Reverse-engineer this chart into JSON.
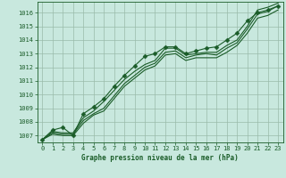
{
  "title": "Graphe pression niveau de la mer (hPa)",
  "bg_color": "#c8e8de",
  "grid_color": "#99bbaa",
  "line_color": "#1a5c28",
  "xlim": [
    -0.5,
    23.5
  ],
  "ylim": [
    1006.5,
    1016.8
  ],
  "yticks": [
    1007,
    1008,
    1009,
    1010,
    1011,
    1012,
    1013,
    1014,
    1015,
    1016
  ],
  "xticks": [
    0,
    1,
    2,
    3,
    4,
    5,
    6,
    7,
    8,
    9,
    10,
    11,
    12,
    13,
    14,
    15,
    16,
    17,
    18,
    19,
    20,
    21,
    22,
    23
  ],
  "series": [
    [
      1006.7,
      1007.3,
      1007.2,
      1007.2,
      1008.3,
      1008.8,
      1009.5,
      1010.3,
      1011.1,
      1011.7,
      1012.2,
      1012.5,
      1013.4,
      1013.4,
      1012.9,
      1013.0,
      1013.1,
      1013.1,
      1013.6,
      1014.0,
      1015.0,
      1016.2,
      1016.4,
      1016.7
    ],
    [
      1006.7,
      1007.2,
      1007.1,
      1007.1,
      1008.1,
      1008.6,
      1009.0,
      1009.9,
      1010.8,
      1011.4,
      1012.0,
      1012.3,
      1013.1,
      1013.2,
      1012.7,
      1012.9,
      1013.0,
      1012.9,
      1013.4,
      1013.8,
      1014.8,
      1015.9,
      1016.1,
      1016.5
    ],
    [
      1006.7,
      1007.1,
      1007.0,
      1007.0,
      1007.9,
      1008.5,
      1008.8,
      1009.7,
      1010.6,
      1011.2,
      1011.8,
      1012.1,
      1012.9,
      1013.0,
      1012.5,
      1012.7,
      1012.7,
      1012.7,
      1013.1,
      1013.6,
      1014.5,
      1015.6,
      1015.8,
      1016.2
    ],
    [
      1006.7,
      1007.4,
      1007.6,
      1007.0,
      1008.6,
      1009.1,
      1009.7,
      1010.6,
      1011.4,
      1012.1,
      1012.8,
      1013.0,
      1013.5,
      1013.5,
      1013.0,
      1013.2,
      1013.4,
      1013.5,
      1014.0,
      1014.5,
      1015.4,
      1016.0,
      1016.2,
      1016.5
    ]
  ],
  "marker_series": 3,
  "marker": "D",
  "marker_size": 2.5,
  "label_fontsize": 5.5,
  "tick_fontsize": 5.0
}
